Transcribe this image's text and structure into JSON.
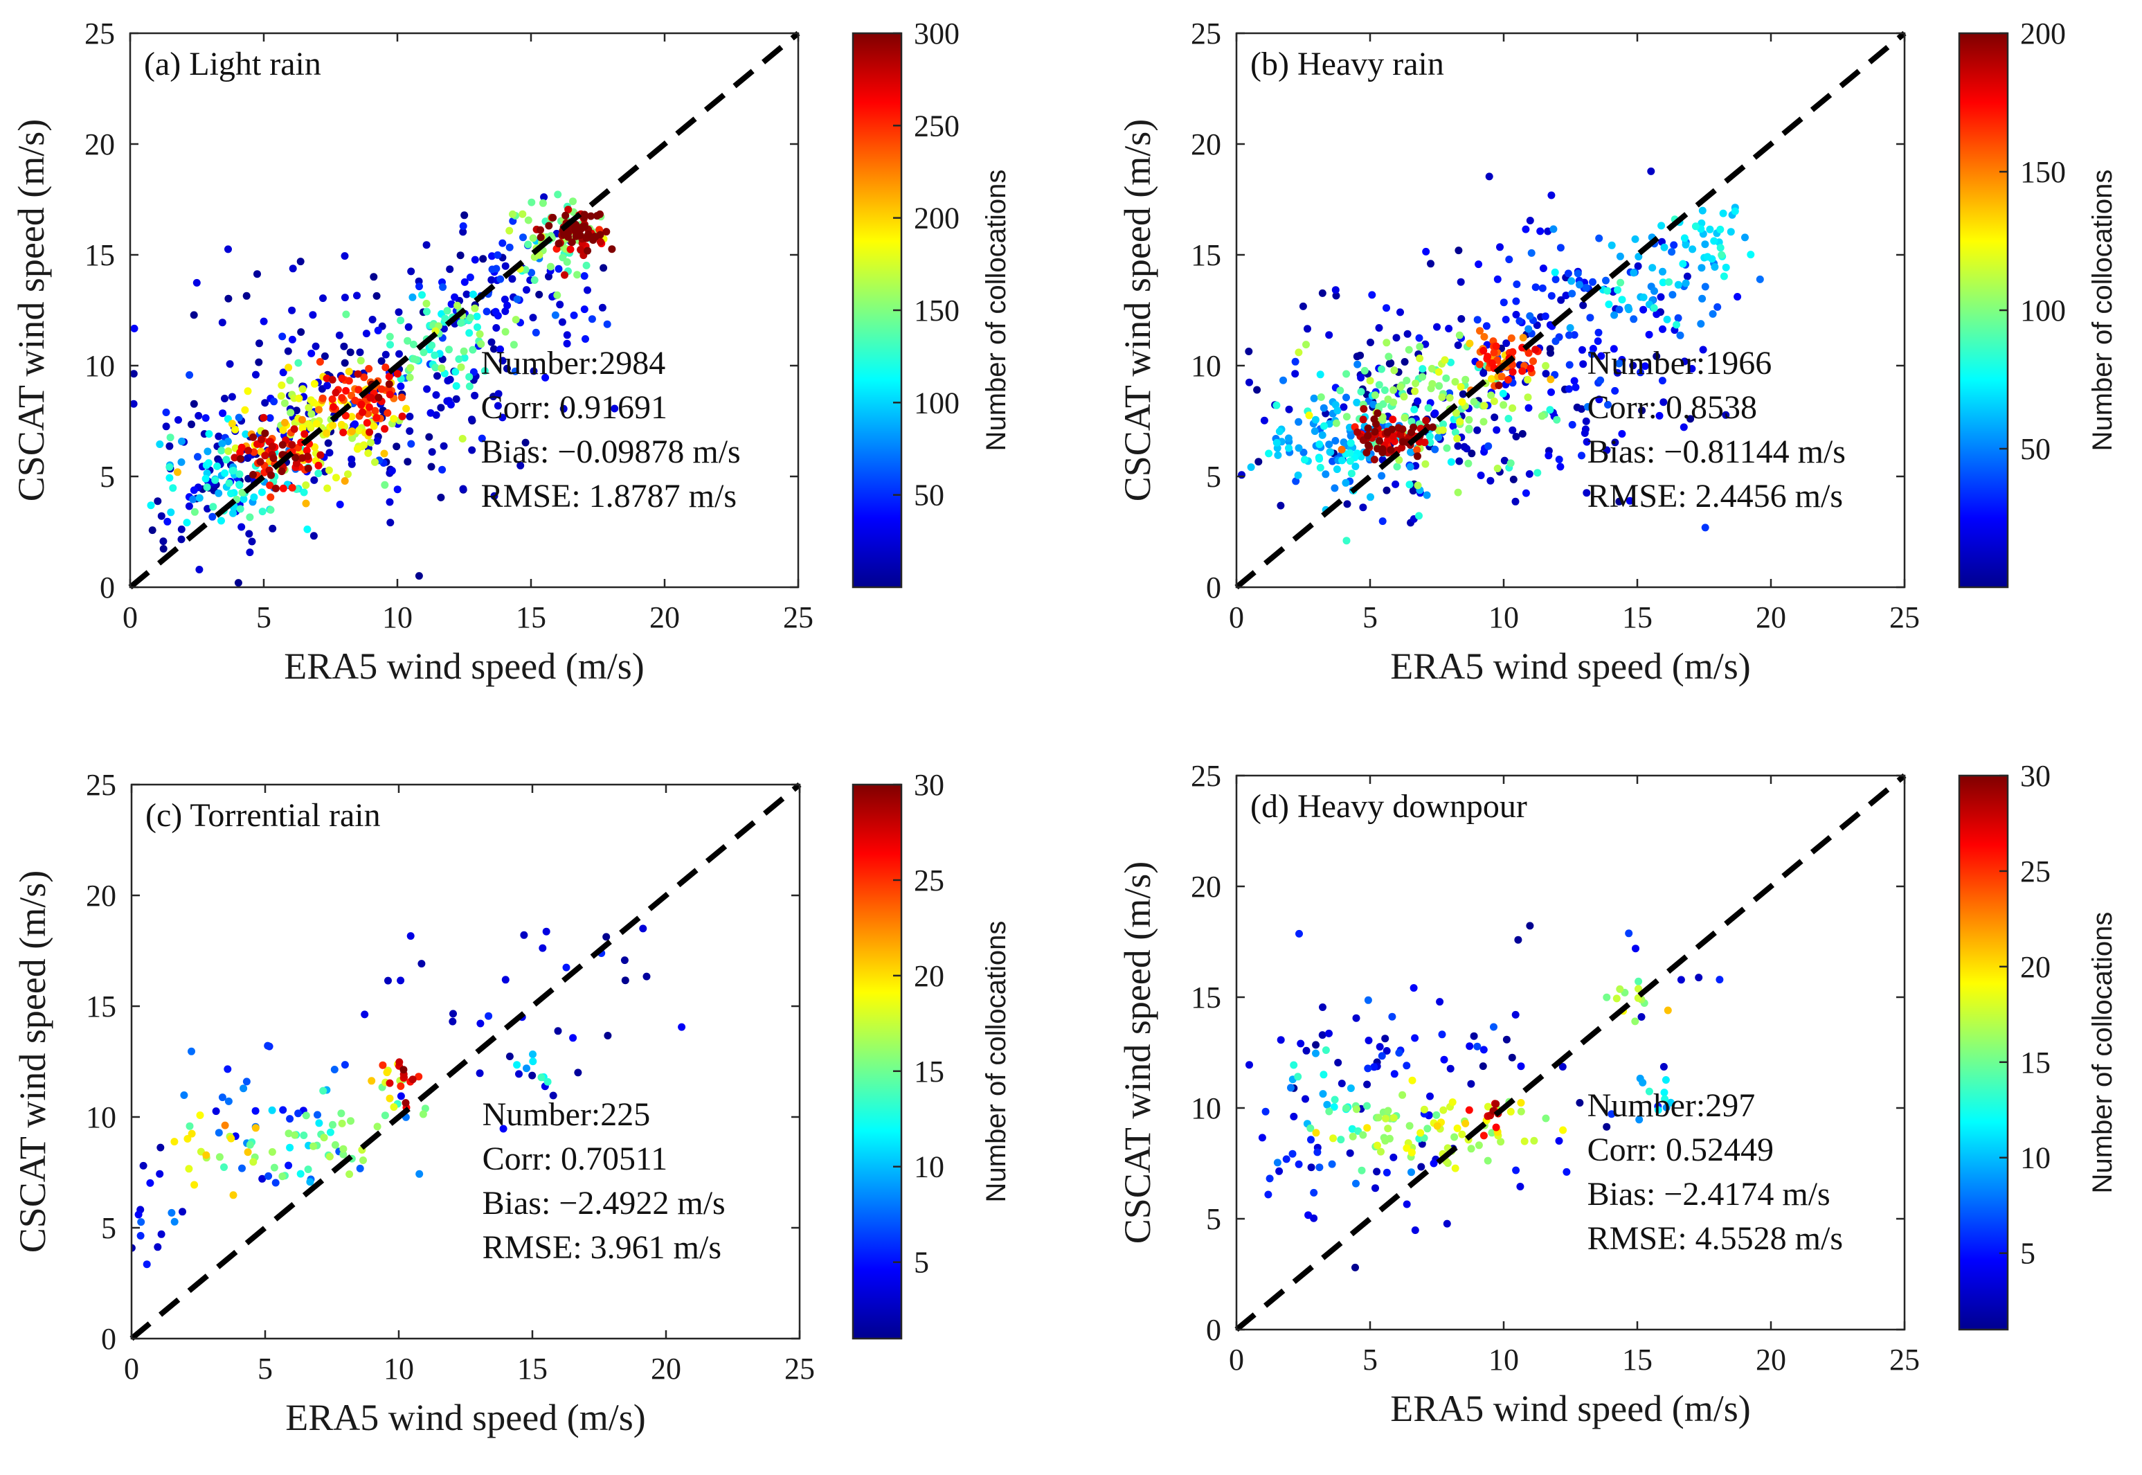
{
  "colorbar_label": "Number of collocations",
  "colormap_stops": [
    "#00008f",
    "#0000ff",
    "#0080ff",
    "#00ffff",
    "#80ff80",
    "#ffff00",
    "#ff8000",
    "#ff0000",
    "#800000"
  ],
  "chart_data": [
    {
      "type": "scatter",
      "title": "(a) Light rain",
      "xlabel": "ERA5 wind speed (m/s)",
      "ylabel": "CSCAT wind speed (m/s)",
      "xlim": [
        0,
        25
      ],
      "ylim": [
        0,
        25
      ],
      "xticks": [
        "0",
        "5",
        "10",
        "15",
        "20",
        "25"
      ],
      "yticks": [
        "0",
        "5",
        "10",
        "15",
        "20",
        "25"
      ],
      "colorbar": {
        "min": 0,
        "max": 300,
        "ticks": [
          "50",
          "100",
          "150",
          "200",
          "250",
          "300"
        ]
      },
      "stats": [
        "Number:2984",
        "Corr: 0.91691",
        "Bias: −0.09878 m/s",
        "RMSE: 1.8787 m/s"
      ],
      "reference_line": "1:1",
      "clusters": [
        {
          "x": 5.5,
          "y": 5.9,
          "sx": 0.8,
          "sy": 0.7,
          "n": 70,
          "c": 0.9
        },
        {
          "x": 8.8,
          "y": 8.6,
          "sx": 0.8,
          "sy": 0.7,
          "n": 70,
          "c": 0.85
        },
        {
          "x": 7.2,
          "y": 7.2,
          "sx": 1.6,
          "sy": 1.3,
          "n": 120,
          "c": 0.6
        },
        {
          "x": 11.5,
          "y": 11.3,
          "sx": 1.2,
          "sy": 1.0,
          "n": 70,
          "c": 0.45
        },
        {
          "x": 16.6,
          "y": 16.1,
          "sx": 0.6,
          "sy": 0.5,
          "n": 70,
          "c": 0.98
        },
        {
          "x": 16.0,
          "y": 15.8,
          "sx": 1.0,
          "sy": 0.9,
          "n": 70,
          "c": 0.5
        },
        {
          "x": 4.0,
          "y": 5.0,
          "sx": 1.3,
          "sy": 1.1,
          "n": 90,
          "c": 0.35
        },
        {
          "x": 14.0,
          "y": 13.5,
          "sx": 1.8,
          "sy": 1.8,
          "n": 80,
          "c": 0.12
        },
        {
          "x": 8.5,
          "y": 9.0,
          "sx": 3.5,
          "sy": 3.0,
          "n": 200,
          "c": 0.06
        },
        {
          "x": 3.0,
          "y": 5.5,
          "sx": 1.5,
          "sy": 2.5,
          "n": 70,
          "c": 0.05
        }
      ]
    },
    {
      "type": "scatter",
      "title": "(b) Heavy rain",
      "xlabel": "ERA5 wind speed (m/s)",
      "ylabel": "CSCAT wind speed (m/s)",
      "xlim": [
        0,
        25
      ],
      "ylim": [
        0,
        25
      ],
      "xticks": [
        "0",
        "5",
        "10",
        "15",
        "20",
        "25"
      ],
      "yticks": [
        "0",
        "5",
        "10",
        "15",
        "20",
        "25"
      ],
      "colorbar": {
        "min": 0,
        "max": 200,
        "ticks": [
          "50",
          "100",
          "150",
          "200"
        ]
      },
      "stats": [
        "Number:1966",
        "Corr: 0.8538",
        "Bias: −0.81144 m/s",
        "RMSE: 2.4456 m/s"
      ],
      "reference_line": "1:1",
      "clusters": [
        {
          "x": 5.8,
          "y": 6.8,
          "sx": 0.7,
          "sy": 0.5,
          "n": 70,
          "c": 0.95
        },
        {
          "x": 9.8,
          "y": 10.0,
          "sx": 0.7,
          "sy": 0.6,
          "n": 55,
          "c": 0.8
        },
        {
          "x": 7.5,
          "y": 8.2,
          "sx": 2.0,
          "sy": 1.5,
          "n": 140,
          "c": 0.5
        },
        {
          "x": 4.0,
          "y": 6.5,
          "sx": 1.6,
          "sy": 1.3,
          "n": 120,
          "c": 0.3
        },
        {
          "x": 15.5,
          "y": 14.0,
          "sx": 1.5,
          "sy": 1.4,
          "n": 70,
          "c": 0.3
        },
        {
          "x": 18.0,
          "y": 15.5,
          "sx": 0.5,
          "sy": 0.8,
          "n": 25,
          "c": 0.35
        },
        {
          "x": 12.5,
          "y": 11.5,
          "sx": 2.5,
          "sy": 2.2,
          "n": 120,
          "c": 0.12
        },
        {
          "x": 8.0,
          "y": 8.5,
          "sx": 4.0,
          "sy": 2.8,
          "n": 160,
          "c": 0.05
        }
      ]
    },
    {
      "type": "scatter",
      "title": "(c) Torrential rain",
      "xlabel": "ERA5 wind speed (m/s)",
      "ylabel": "CSCAT wind speed (m/s)",
      "xlim": [
        0,
        25
      ],
      "ylim": [
        0,
        25
      ],
      "xticks": [
        "0",
        "5",
        "10",
        "15",
        "20",
        "25"
      ],
      "yticks": [
        "0",
        "5",
        "10",
        "15",
        "20",
        "25"
      ],
      "colorbar": {
        "min": 1,
        "max": 30,
        "ticks": [
          "5",
          "10",
          "15",
          "20",
          "25",
          "30"
        ]
      },
      "stats": [
        "Number:225",
        "Corr: 0.70511",
        "Bias: −2.4922 m/s",
        "RMSE: 3.961 m/s"
      ],
      "reference_line": "1:1",
      "clusters": [
        {
          "x": 10.2,
          "y": 11.5,
          "sx": 0.4,
          "sy": 0.6,
          "n": 14,
          "c": 0.9
        },
        {
          "x": 10.0,
          "y": 11.5,
          "sx": 0.7,
          "sy": 1.2,
          "n": 14,
          "c": 0.55
        },
        {
          "x": 3.3,
          "y": 8.6,
          "sx": 0.8,
          "sy": 0.7,
          "n": 18,
          "c": 0.6
        },
        {
          "x": 6.0,
          "y": 8.7,
          "sx": 1.3,
          "sy": 1.0,
          "n": 25,
          "c": 0.45
        },
        {
          "x": 7.8,
          "y": 8.7,
          "sx": 0.8,
          "sy": 1.0,
          "n": 14,
          "c": 0.5
        },
        {
          "x": 15.3,
          "y": 11.8,
          "sx": 0.6,
          "sy": 0.4,
          "n": 8,
          "c": 0.35
        },
        {
          "x": 0.7,
          "y": 6.0,
          "sx": 0.5,
          "sy": 1.5,
          "n": 16,
          "c": 0.12
        },
        {
          "x": 5.0,
          "y": 10.0,
          "sx": 3.0,
          "sy": 2.0,
          "n": 40,
          "c": 0.18
        },
        {
          "x": 13.5,
          "y": 13.5,
          "sx": 3.0,
          "sy": 2.5,
          "n": 25,
          "c": 0.08
        },
        {
          "x": 17.5,
          "y": 18.0,
          "sx": 1.2,
          "sy": 1.2,
          "n": 8,
          "c": 0.06
        }
      ]
    },
    {
      "type": "scatter",
      "title": "(d) Heavy downpour",
      "xlabel": "ERA5 wind speed (m/s)",
      "ylabel": "CSCAT wind speed (m/s)",
      "xlim": [
        0,
        25
      ],
      "ylim": [
        0,
        25
      ],
      "xticks": [
        "0",
        "5",
        "10",
        "15",
        "20",
        "25"
      ],
      "yticks": [
        "0",
        "5",
        "10",
        "15",
        "20",
        "25"
      ],
      "colorbar": {
        "min": 1,
        "max": 30,
        "ticks": [
          "5",
          "10",
          "15",
          "20",
          "25",
          "30"
        ]
      },
      "stats": [
        "Number:297",
        "Corr: 0.52449",
        "Bias: −2.4174 m/s",
        "RMSE: 4.5528 m/s"
      ],
      "reference_line": "1:1",
      "clusters": [
        {
          "x": 9.8,
          "y": 9.7,
          "sx": 0.4,
          "sy": 0.4,
          "n": 10,
          "c": 0.9
        },
        {
          "x": 9.5,
          "y": 9.7,
          "sx": 1.0,
          "sy": 0.6,
          "n": 22,
          "c": 0.6
        },
        {
          "x": 7.2,
          "y": 8.6,
          "sx": 1.5,
          "sy": 0.8,
          "n": 35,
          "c": 0.55
        },
        {
          "x": 4.5,
          "y": 9.2,
          "sx": 1.3,
          "sy": 0.8,
          "n": 30,
          "c": 0.5
        },
        {
          "x": 14.8,
          "y": 14.8,
          "sx": 0.6,
          "sy": 0.6,
          "n": 12,
          "c": 0.55
        },
        {
          "x": 15.8,
          "y": 10.3,
          "sx": 0.4,
          "sy": 0.8,
          "n": 10,
          "c": 0.35
        },
        {
          "x": 3.0,
          "y": 10.5,
          "sx": 0.6,
          "sy": 1.5,
          "n": 14,
          "c": 0.35
        },
        {
          "x": 5.5,
          "y": 12.5,
          "sx": 2.0,
          "sy": 1.8,
          "n": 35,
          "c": 0.12
        },
        {
          "x": 1.5,
          "y": 7.8,
          "sx": 0.8,
          "sy": 0.8,
          "n": 15,
          "c": 0.15
        },
        {
          "x": 11.0,
          "y": 13.0,
          "sx": 3.0,
          "sy": 2.5,
          "n": 30,
          "c": 0.07
        },
        {
          "x": 7.0,
          "y": 7.0,
          "sx": 3.0,
          "sy": 2.0,
          "n": 25,
          "c": 0.1
        }
      ]
    }
  ]
}
